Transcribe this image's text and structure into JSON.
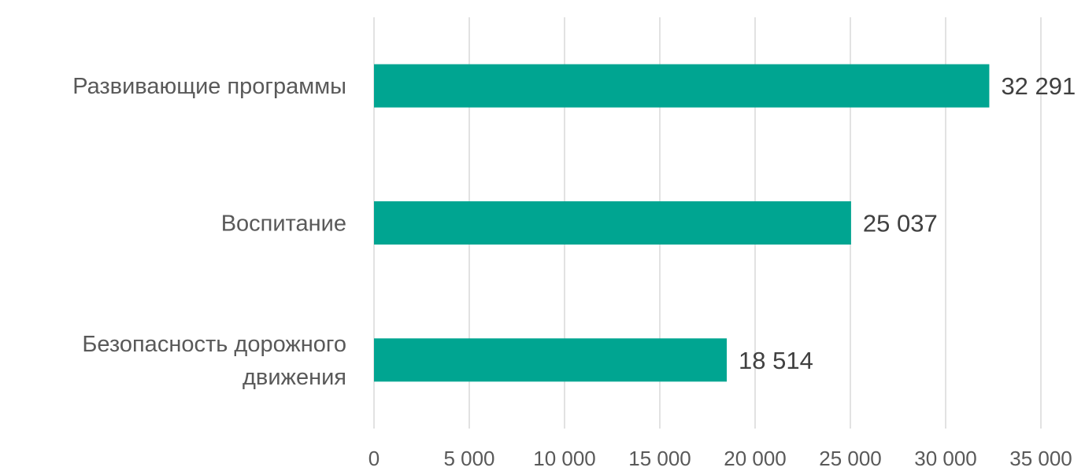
{
  "chart_data": {
    "type": "bar",
    "orientation": "horizontal",
    "categories": [
      [
        "Развивающие программы"
      ],
      [
        "Воспитание"
      ],
      [
        "Безопасность дорожного",
        "движения"
      ]
    ],
    "values": [
      32291,
      25037,
      18514
    ],
    "value_labels": [
      "32 291",
      "25 037",
      "18 514"
    ],
    "x_ticks": [
      0,
      5000,
      10000,
      15000,
      20000,
      25000,
      30000,
      35000
    ],
    "x_tick_labels": [
      "0",
      "5 000",
      "10 000",
      "15 000",
      "20 000",
      "25 000",
      "30 000",
      "35 000"
    ],
    "xlim": [
      0,
      35000
    ],
    "grid": "vertical",
    "legend": "none",
    "bar_color": "#00a591"
  }
}
